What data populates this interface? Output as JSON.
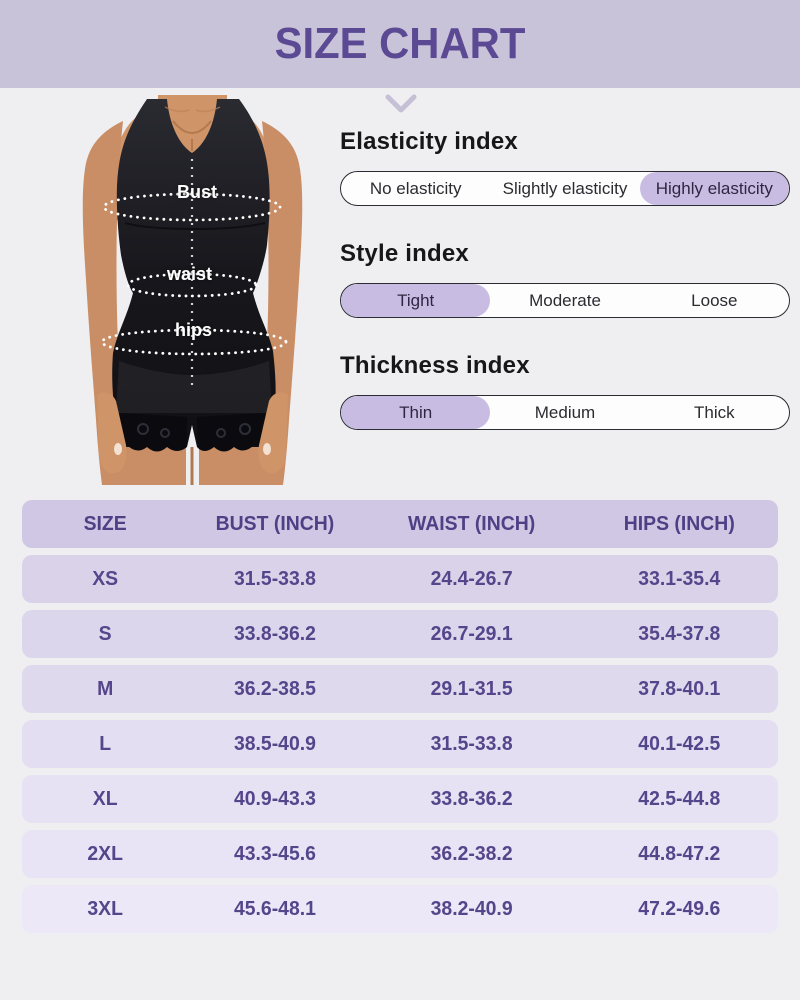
{
  "header": {
    "title": "SIZE CHART"
  },
  "figure": {
    "description": "model wearing black shapewear bodysuit with measurement lines",
    "labels": {
      "bust": "Bust",
      "waist": "waist",
      "hips": "hips"
    }
  },
  "indexes": [
    {
      "id": "elasticity",
      "title": "Elasticity index",
      "options": [
        "No elasticity",
        "Slightly elasticity",
        "Highly elasticity"
      ],
      "selected": 2
    },
    {
      "id": "style",
      "title": "Style index",
      "options": [
        "Tight",
        "Moderate",
        "Loose"
      ],
      "selected": 0
    },
    {
      "id": "thickness",
      "title": "Thickness index",
      "options": [
        "Thin",
        "Medium",
        "Thick"
      ],
      "selected": 0
    }
  ],
  "table": {
    "columns": [
      "SIZE",
      "BUST (INCH)",
      "WAIST (INCH)",
      "HIPS (INCH)"
    ],
    "rows": [
      [
        "XS",
        "31.5-33.8",
        "24.4-26.7",
        "33.1-35.4"
      ],
      [
        "S",
        "33.8-36.2",
        "26.7-29.1",
        "35.4-37.8"
      ],
      [
        "M",
        "36.2-38.5",
        "29.1-31.5",
        "37.8-40.1"
      ],
      [
        "L",
        "38.5-40.9",
        "31.5-33.8",
        "40.1-42.5"
      ],
      [
        "XL",
        "40.9-43.3",
        "33.8-36.2",
        "42.5-44.8"
      ],
      [
        "2XL",
        "43.3-45.6",
        "36.2-38.2",
        "44.8-47.2"
      ],
      [
        "3XL",
        "45.6-48.1",
        "38.2-40.9",
        "47.2-49.6"
      ]
    ]
  },
  "colors": {
    "accent_purple": "#5b4a93",
    "header_band_bg": "#c9c3da",
    "page_bg": "#efeef1",
    "highlight_pill": "#c9bce3",
    "bar_border": "#2b2b33",
    "table_header_bg": "#cfc7e3",
    "table_text": "#55458b",
    "row_backgrounds": [
      "#d9d2e9",
      "#dcd6ec",
      "#dfd9ee",
      "#e3def1",
      "#e6e1f3",
      "#e9e4f5",
      "#ece8f7"
    ]
  }
}
